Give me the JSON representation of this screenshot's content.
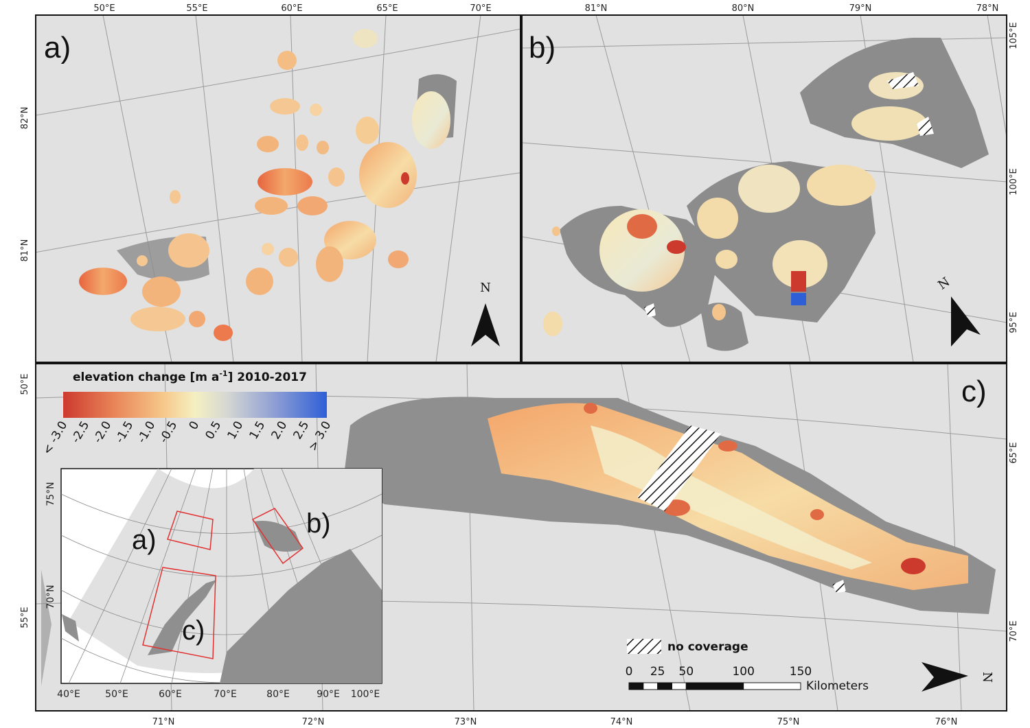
{
  "colors": {
    "background": "#e1e1e1",
    "ocean": "#e1e1e1",
    "land_gray": "#8c8c8c",
    "scale_low": "#cc3a2e",
    "scale_mid": "#f5f0c2",
    "scale_high": "#2f5fd6",
    "inset_box": "#e23030",
    "frame": "#111111"
  },
  "panels": {
    "a": {
      "label": "a)",
      "lon_ticks": [
        "50°E",
        "55°E",
        "60°E",
        "65°E",
        "70°E"
      ],
      "lat_ticks": [
        "82°N",
        "81°N"
      ]
    },
    "b": {
      "label": "b)",
      "lat_ticks": [
        "81°N",
        "80°N",
        "79°N",
        "78°N"
      ],
      "lon_ticks": [
        "105°E",
        "100°E",
        "95°E"
      ]
    },
    "c": {
      "label": "c)",
      "lat_ticks_bottom": [
        "71°N",
        "72°N",
        "73°N",
        "74°N",
        "75°N",
        "76°N"
      ],
      "lon_ticks_left": [
        "50°E",
        "55°E"
      ],
      "lon_ticks_right": [
        "65°E",
        "70°E"
      ]
    }
  },
  "north_arrow": {
    "label": "N"
  },
  "legend": {
    "title_prefix": "elevation change [m a",
    "title_sup": "-1",
    "title_suffix": "] 2010-2017",
    "ticks": [
      "< -3.0",
      "-2.5",
      "-2.0",
      "-1.5",
      "-1.0",
      "-0.5",
      "0",
      "0.5",
      "1.0",
      "1.5",
      "2.0",
      "2.5",
      "> 3.0"
    ]
  },
  "no_coverage_label": "no coverage",
  "scale_bar": {
    "ticks": [
      "0",
      "25",
      "50",
      "100",
      "150"
    ],
    "tick_values": [
      0,
      25,
      50,
      100,
      150
    ],
    "unit": "Kilometers"
  },
  "inset": {
    "lat_ticks": [
      "75°N",
      "70°N"
    ],
    "lon_ticks": [
      "40°E",
      "50°E",
      "60°E",
      "70°E",
      "80°E",
      "90°E",
      "100°E"
    ],
    "box_labels": [
      "a)",
      "b)",
      "c)"
    ]
  }
}
